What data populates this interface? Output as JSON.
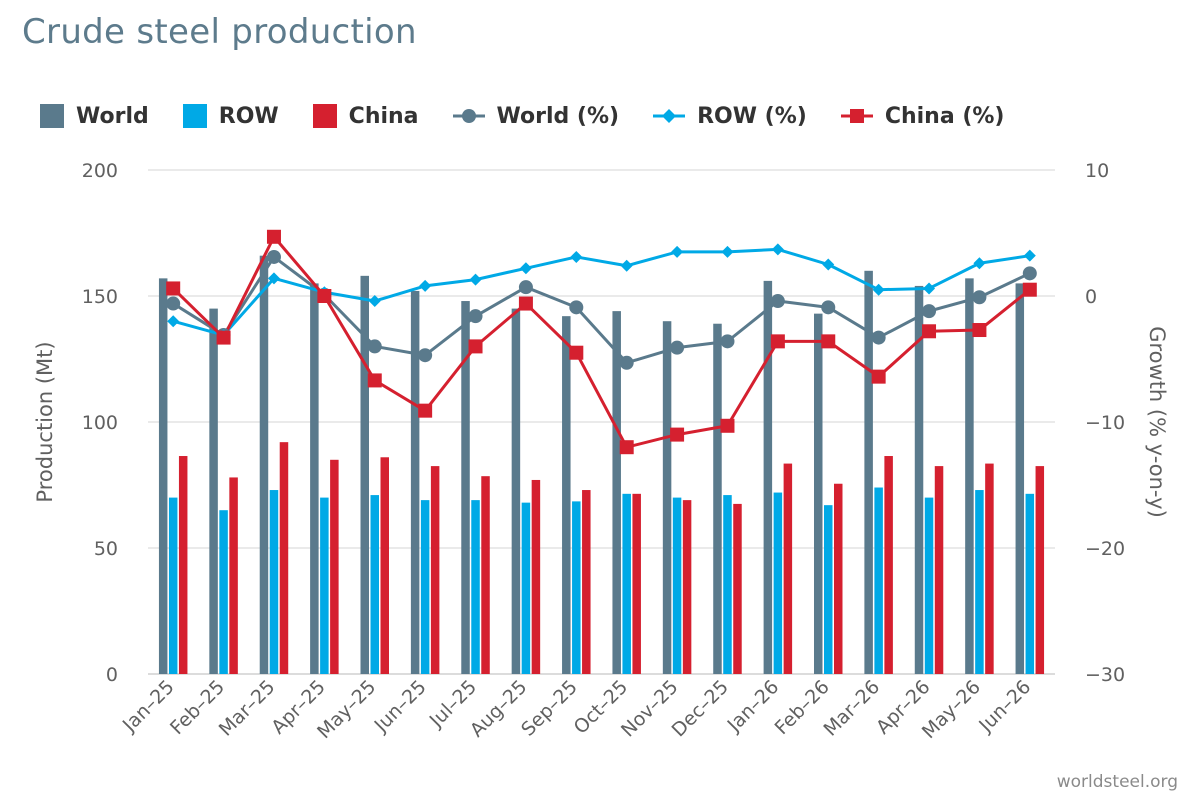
{
  "title": "Crude steel production",
  "credit": "worldsteel.org",
  "colors": {
    "world": "#5a7a8c",
    "row": "#00a9e6",
    "china": "#d5202f",
    "grid": "#dddddd",
    "axis_text": "#606060"
  },
  "legend": [
    {
      "label": "World",
      "kind": "bar",
      "color": "#5a7a8c"
    },
    {
      "label": "ROW",
      "kind": "bar",
      "color": "#00a9e6"
    },
    {
      "label": "China",
      "kind": "bar",
      "color": "#d5202f"
    },
    {
      "label": "World (%)",
      "kind": "line-circle",
      "color": "#5a7a8c"
    },
    {
      "label": "ROW (%)",
      "kind": "line-diamond",
      "color": "#00a9e6"
    },
    {
      "label": "China (%)",
      "kind": "line-square",
      "color": "#d5202f"
    }
  ],
  "chart_data": {
    "type": "bar",
    "title": "Crude steel production",
    "ylabel": "Production (Mt)",
    "y2label": "Growth (% y-on-y)",
    "ylim": [
      0,
      200
    ],
    "y2lim": [
      -30,
      10
    ],
    "yticks": [
      "0",
      "50",
      "100",
      "150",
      "200"
    ],
    "y2ticks": [
      "−30",
      "−20",
      "−10",
      "0",
      "10"
    ],
    "grid": true,
    "legend_position": "top",
    "categories": [
      "Jan–25",
      "Feb–25",
      "Mar–25",
      "Apr–25",
      "May–25",
      "Jun–25",
      "Jul–25",
      "Aug–25",
      "Sep–25",
      "Oct–25",
      "Nov–25",
      "Dec–25",
      "Jan–26",
      "Feb–26",
      "Mar–26",
      "Apr–26",
      "May–26",
      "Jun–26"
    ],
    "bar_series": [
      {
        "name": "World",
        "values": [
          157,
          145,
          166,
          155,
          158,
          152,
          148,
          145,
          142,
          144,
          140,
          139,
          156,
          143,
          160,
          154,
          157,
          155
        ]
      },
      {
        "name": "ROW",
        "values": [
          70,
          65,
          73,
          70,
          71,
          69,
          69,
          68,
          68.5,
          71.5,
          70,
          71,
          72,
          67,
          74,
          70,
          73,
          71.5
        ]
      },
      {
        "name": "China",
        "values": [
          86.5,
          78,
          92,
          85,
          86,
          82.5,
          78.5,
          77,
          73,
          71.5,
          69,
          67.5,
          83.5,
          75.5,
          86.5,
          82.5,
          83.5,
          82.5
        ]
      }
    ],
    "line_series": [
      {
        "name": "World (%)",
        "values": [
          -0.6,
          -3.1,
          3.1,
          0.1,
          -4.0,
          -4.7,
          -1.6,
          0.7,
          -0.9,
          -5.3,
          -4.1,
          -3.6,
          -0.4,
          -0.9,
          -3.3,
          -1.2,
          -0.1,
          1.8
        ]
      },
      {
        "name": "ROW (%)",
        "values": [
          -2.0,
          -3.1,
          1.4,
          0.3,
          -0.4,
          0.8,
          1.3,
          2.2,
          3.1,
          2.4,
          3.5,
          3.5,
          3.7,
          2.5,
          0.5,
          0.6,
          2.6,
          3.2
        ]
      },
      {
        "name": "China (%)",
        "values": [
          0.6,
          -3.3,
          4.7,
          0.0,
          -6.7,
          -9.1,
          -4.0,
          -0.6,
          -4.5,
          -12.0,
          -11.0,
          -10.3,
          -3.6,
          -3.6,
          -6.4,
          -2.8,
          -2.7,
          0.5
        ]
      }
    ]
  }
}
